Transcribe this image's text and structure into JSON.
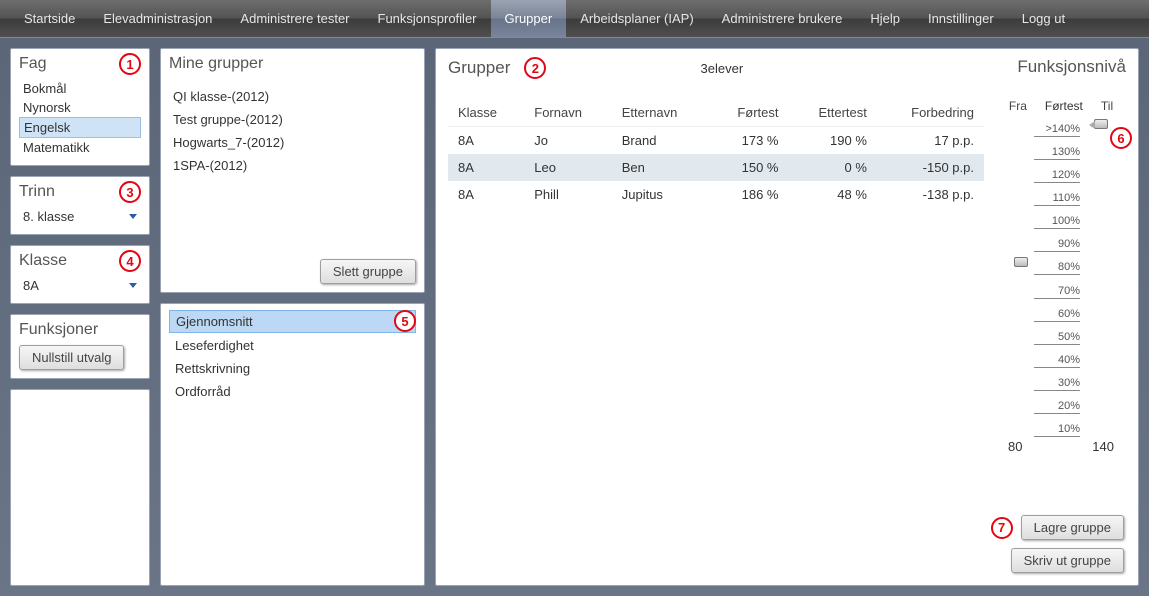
{
  "topnav": {
    "items": [
      {
        "label": "Startside"
      },
      {
        "label": "Elevadministrasjon"
      },
      {
        "label": "Administrere tester"
      },
      {
        "label": "Funksjonsprofiler"
      },
      {
        "label": "Grupper",
        "active": true
      },
      {
        "label": "Arbeidsplaner (IAP)"
      },
      {
        "label": "Administrere brukere"
      },
      {
        "label": "Hjelp"
      },
      {
        "label": "Innstillinger"
      },
      {
        "label": "Logg ut"
      }
    ]
  },
  "left": {
    "fag": {
      "title": "Fag",
      "items": [
        {
          "label": "Bokmål"
        },
        {
          "label": "Nynorsk"
        },
        {
          "label": "Engelsk",
          "selected": true
        },
        {
          "label": "Matematikk"
        }
      ]
    },
    "trinn": {
      "title": "Trinn",
      "value": "8. klasse"
    },
    "klasse": {
      "title": "Klasse",
      "value": "8A"
    },
    "funksjoner": {
      "title": "Funksjoner",
      "reset_label": "Nullstill utvalg"
    }
  },
  "mid": {
    "groups": {
      "title": "Mine grupper",
      "items": [
        {
          "label": "QI klasse-(2012)"
        },
        {
          "label": "Test gruppe-(2012)"
        },
        {
          "label": "Hogwarts_7-(2012)"
        },
        {
          "label": "1SPA-(2012)"
        }
      ],
      "delete_label": "Slett gruppe"
    },
    "skills": {
      "items": [
        {
          "label": "Gjennomsnitt",
          "selected": true
        },
        {
          "label": "Leseferdighet"
        },
        {
          "label": "Rettskrivning"
        },
        {
          "label": "Ordforråd"
        }
      ]
    }
  },
  "main": {
    "title": "Grupper",
    "student_count": "3elever",
    "funks_title": "Funksjonsnivå",
    "slider": {
      "fra": "Fra",
      "fortest": "Førtest",
      "til": "Til",
      "ticks": [
        ">140%",
        "130%",
        "120%",
        "110%",
        "100%",
        "90%",
        "80%",
        "70%",
        "60%",
        "50%",
        "40%",
        "30%",
        "20%",
        "10%"
      ],
      "value_from": "80",
      "value_to": "140",
      "handle_left_idx": 6,
      "handle_right_idx": 0
    },
    "table": {
      "headers": [
        "Klasse",
        "Fornavn",
        "Etternavn",
        "Førtest",
        "Ettertest",
        "Forbedring"
      ],
      "rows": [
        {
          "klasse": "8A",
          "fornavn": "Jo",
          "etternavn": "Brand",
          "fortest": "173 %",
          "ettertest": "190 %",
          "forbedring": "17 p.p."
        },
        {
          "klasse": "8A",
          "fornavn": "Leo",
          "etternavn": "Ben",
          "fortest": "150 %",
          "ettertest": "0 %",
          "forbedring": "-150 p.p.",
          "selected": true
        },
        {
          "klasse": "8A",
          "fornavn": "Phill",
          "etternavn": "Jupitus",
          "fortest": "186 %",
          "ettertest": "48 %",
          "forbedring": "-138 p.p."
        }
      ]
    },
    "save_label": "Lagre gruppe",
    "print_label": "Skriv ut gruppe"
  },
  "callouts": {
    "1": "1",
    "2": "2",
    "3": "3",
    "4": "4",
    "5": "5",
    "6": "6",
    "7": "7"
  }
}
